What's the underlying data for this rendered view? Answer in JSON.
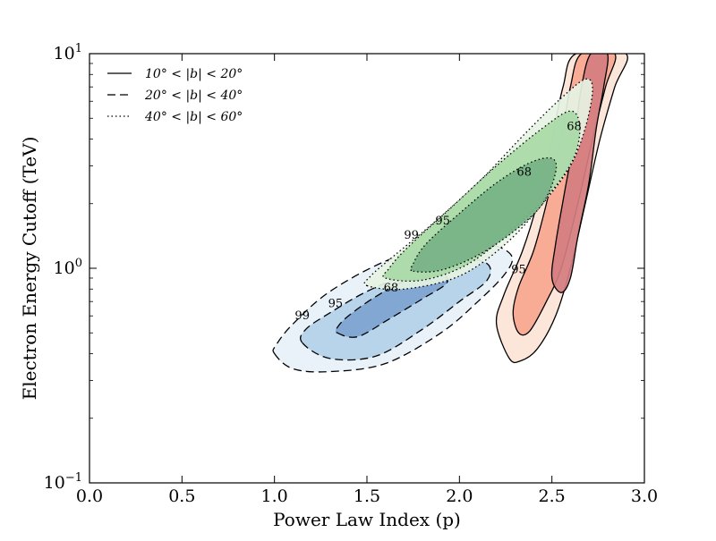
{
  "chart_data": {
    "type": "contour",
    "title": "",
    "xlabel": "Power Law Index (p)",
    "ylabel": "Electron Energy Cutoff (TeV)",
    "xlim": [
      0.0,
      3.0
    ],
    "ylim": [
      0.1,
      10
    ],
    "yscale": "log",
    "xticks": [
      0.0,
      0.5,
      1.0,
      1.5,
      2.0,
      2.5,
      3.0
    ],
    "xtick_labels": [
      "0.0",
      "0.5",
      "1.0",
      "1.5",
      "2.0",
      "2.5",
      "3.0"
    ],
    "yticks": [
      {
        "value": 10,
        "base": "10",
        "exp": "1"
      },
      {
        "value": 1,
        "base": "10",
        "exp": "0"
      },
      {
        "value": 0.1,
        "base": "10",
        "exp": "−1"
      }
    ],
    "legend": {
      "placement": "top-left",
      "entries": [
        {
          "style": "solid",
          "label": "10° < |b| < 20°"
        },
        {
          "style": "dashed",
          "label": "20° < |b| < 40°"
        },
        {
          "style": "dotted",
          "label": "40° < |b| < 60°"
        }
      ]
    },
    "series": [
      {
        "name": "10° < |b| < 20°",
        "line_style": "solid",
        "levels": [
          {
            "level": "99",
            "fill": "#fce4d7",
            "points": [
              [
                2.27,
                0.38
              ],
              [
                2.33,
                0.37
              ],
              [
                2.42,
                0.42
              ],
              [
                2.52,
                0.6
              ],
              [
                2.6,
                1.0
              ],
              [
                2.68,
                2.0
              ],
              [
                2.76,
                4.0
              ],
              [
                2.84,
                7.0
              ],
              [
                2.9,
                10.0
              ],
              [
                2.63,
                10.0
              ],
              [
                2.56,
                7.0
              ],
              [
                2.5,
                4.0
              ],
              [
                2.42,
                2.0
              ],
              [
                2.34,
                1.2
              ],
              [
                2.24,
                0.75
              ],
              [
                2.2,
                0.55
              ]
            ]
          },
          {
            "level": "95",
            "fill": "#f7a68f",
            "points": [
              [
                2.32,
                0.5
              ],
              [
                2.38,
                0.51
              ],
              [
                2.47,
                0.7
              ],
              [
                2.55,
                1.0
              ],
              [
                2.64,
                2.0
              ],
              [
                2.72,
                4.0
              ],
              [
                2.79,
                7.0
              ],
              [
                2.84,
                10.0
              ],
              [
                2.66,
                10.0
              ],
              [
                2.6,
                7.0
              ],
              [
                2.55,
                4.0
              ],
              [
                2.47,
                2.0
              ],
              [
                2.4,
                1.2
              ],
              [
                2.32,
                0.82
              ],
              [
                2.29,
                0.62
              ]
            ]
          },
          {
            "level": "68",
            "fill": "#d47d80",
            "points": [
              [
                2.55,
                0.77
              ],
              [
                2.6,
                0.9
              ],
              [
                2.64,
                1.4
              ],
              [
                2.7,
                2.5
              ],
              [
                2.74,
                4.5
              ],
              [
                2.78,
                7.0
              ],
              [
                2.8,
                10.0
              ],
              [
                2.71,
                10.0
              ],
              [
                2.66,
                7.0
              ],
              [
                2.62,
                4.0
              ],
              [
                2.57,
                2.3
              ],
              [
                2.52,
                1.3
              ],
              [
                2.5,
                0.9
              ]
            ]
          }
        ],
        "contour_labels": [
          {
            "text": "95",
            "x": 2.32,
            "y": 0.95
          },
          {
            "text": "68",
            "x": 2.62,
            "y": 4.4
          }
        ]
      },
      {
        "name": "20° < |b| < 40°",
        "line_style": "dashed",
        "levels": [
          {
            "level": "99",
            "fill": "#e7f0f8",
            "points": [
              [
                1.0,
                0.4
              ],
              [
                1.1,
                0.34
              ],
              [
                1.3,
                0.33
              ],
              [
                1.6,
                0.36
              ],
              [
                1.9,
                0.5
              ],
              [
                2.1,
                0.7
              ],
              [
                2.25,
                0.95
              ],
              [
                2.28,
                1.15
              ],
              [
                2.15,
                1.3
              ],
              [
                1.9,
                1.3
              ],
              [
                1.6,
                1.08
              ],
              [
                1.3,
                0.78
              ],
              [
                1.1,
                0.55
              ],
              [
                1.01,
                0.44
              ]
            ]
          },
          {
            "level": "95",
            "fill": "#b2d1e8",
            "points": [
              [
                1.15,
                0.45
              ],
              [
                1.3,
                0.38
              ],
              [
                1.55,
                0.39
              ],
              [
                1.8,
                0.52
              ],
              [
                2.0,
                0.7
              ],
              [
                2.15,
                0.88
              ],
              [
                2.15,
                1.05
              ],
              [
                2.0,
                1.1
              ],
              [
                1.75,
                0.96
              ],
              [
                1.5,
                0.78
              ],
              [
                1.3,
                0.62
              ],
              [
                1.17,
                0.52
              ]
            ]
          },
          {
            "level": "68",
            "fill": "#7da3cf",
            "points": [
              [
                1.34,
                0.5
              ],
              [
                1.45,
                0.48
              ],
              [
                1.62,
                0.58
              ],
              [
                1.8,
                0.72
              ],
              [
                1.93,
                0.85
              ],
              [
                1.9,
                0.93
              ],
              [
                1.72,
                0.88
              ],
              [
                1.55,
                0.74
              ],
              [
                1.4,
                0.6
              ],
              [
                1.34,
                0.53
              ]
            ]
          }
        ],
        "contour_labels": [
          {
            "text": "99",
            "x": 1.15,
            "y": 0.58
          },
          {
            "text": "95",
            "x": 1.33,
            "y": 0.66
          },
          {
            "text": "68",
            "x": 1.63,
            "y": 0.78
          }
        ]
      },
      {
        "name": "40° < |b| < 60°",
        "line_style": "dotted",
        "levels": [
          {
            "level": "99",
            "fill": "#e6f3e3",
            "points": [
              [
                1.5,
                0.83
              ],
              [
                1.7,
                0.8
              ],
              [
                2.0,
                0.92
              ],
              [
                2.25,
                1.3
              ],
              [
                2.45,
                2.0
              ],
              [
                2.6,
                3.0
              ],
              [
                2.68,
                4.5
              ],
              [
                2.72,
                6.8
              ],
              [
                2.68,
                7.6
              ],
              [
                2.55,
                6.2
              ],
              [
                2.35,
                4.2
              ],
              [
                2.1,
                2.5
              ],
              [
                1.85,
                1.6
              ],
              [
                1.65,
                1.15
              ],
              [
                1.52,
                0.92
              ]
            ]
          },
          {
            "level": "95",
            "fill": "#a8d9a6",
            "points": [
              [
                1.6,
                0.9
              ],
              [
                1.8,
                0.88
              ],
              [
                2.05,
                1.05
              ],
              [
                2.3,
                1.55
              ],
              [
                2.5,
                2.3
              ],
              [
                2.62,
                3.3
              ],
              [
                2.65,
                4.6
              ],
              [
                2.6,
                5.4
              ],
              [
                2.45,
                4.5
              ],
              [
                2.2,
                3.0
              ],
              [
                1.95,
                1.9
              ],
              [
                1.72,
                1.25
              ],
              [
                1.62,
                1.0
              ]
            ]
          },
          {
            "level": "68",
            "fill": "#76b286",
            "points": [
              [
                1.75,
                0.97
              ],
              [
                1.9,
                0.98
              ],
              [
                2.1,
                1.15
              ],
              [
                2.3,
                1.5
              ],
              [
                2.45,
                2.0
              ],
              [
                2.52,
                2.8
              ],
              [
                2.5,
                3.25
              ],
              [
                2.38,
                3.1
              ],
              [
                2.2,
                2.5
              ],
              [
                2.0,
                1.8
              ],
              [
                1.82,
                1.3
              ],
              [
                1.75,
                1.05
              ]
            ]
          }
        ],
        "contour_labels": [
          {
            "text": "99",
            "x": 1.74,
            "y": 1.37
          },
          {
            "text": "95",
            "x": 1.91,
            "y": 1.6
          },
          {
            "text": "68",
            "x": 2.35,
            "y": 2.7
          }
        ]
      }
    ]
  }
}
